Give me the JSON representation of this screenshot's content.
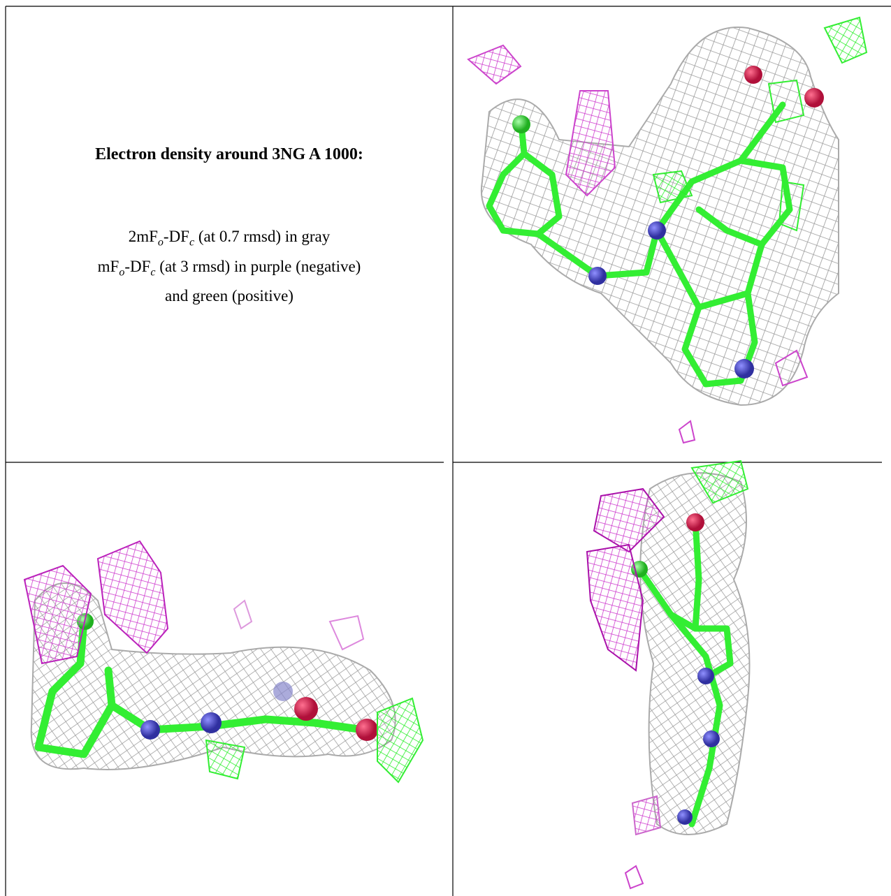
{
  "title": "Electron density around 3NG A 1000:",
  "legend": [
    [
      "2mF",
      "o",
      "-DF",
      "c",
      " (at 0.7 rmsd) in gray"
    ],
    [
      "mF",
      "o",
      "-DF",
      "c",
      " (at 3 rmsd) in purple (negative)"
    ],
    [
      "and green (positive)"
    ]
  ]
}
